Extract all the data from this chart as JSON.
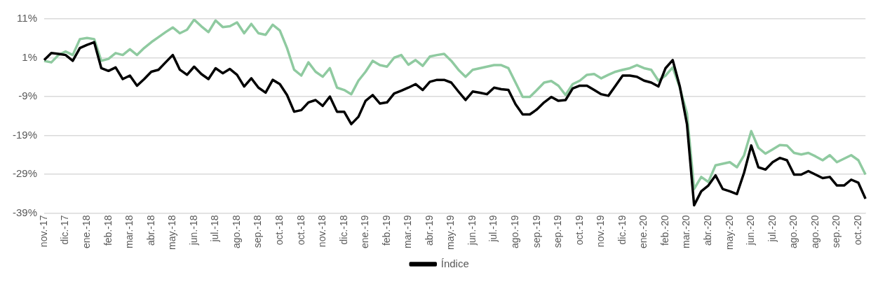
{
  "chart_data": {
    "type": "line",
    "categories": [
      "nov.-17",
      null,
      null,
      "dic.-17",
      null,
      null,
      "ene.-18",
      null,
      null,
      "feb.-18",
      null,
      null,
      "mar.-18",
      null,
      null,
      "abr.-18",
      null,
      null,
      "may.-18",
      null,
      null,
      "jun.-18",
      null,
      null,
      "jul.-18",
      null,
      null,
      "ago.-18",
      null,
      null,
      "sep.-18",
      null,
      null,
      "oct.-18",
      null,
      null,
      "oct.-18",
      null,
      null,
      "nov.-18",
      null,
      null,
      "dic.-18",
      null,
      null,
      "ene.-19",
      null,
      null,
      "feb.-19",
      null,
      null,
      "mar.-19",
      null,
      null,
      "abr.-19",
      null,
      null,
      "may.-19",
      null,
      null,
      "jun.-19",
      null,
      null,
      "jul.-19",
      null,
      null,
      "ago.-19",
      null,
      null,
      "sep.-19",
      null,
      null,
      "sep.-19",
      null,
      null,
      "oct.-19",
      null,
      null,
      "nov.-19",
      null,
      null,
      "dic.-19",
      null,
      null,
      "ene.-20",
      null,
      null,
      "feb.-20",
      null,
      null,
      "mar.-20",
      null,
      null,
      "abr.-20",
      null,
      null,
      "may.-20",
      null,
      null,
      "jun.-20",
      null,
      null,
      "jul.-20",
      null,
      null,
      "ago.-20",
      null,
      null,
      "ago.-20",
      null,
      null,
      "sep.-20",
      null,
      null,
      "oct.-20",
      null
    ],
    "series": [
      {
        "name": "Índice",
        "color": "#000000",
        "values": [
          0.4,
          2.2,
          2.0,
          1.7,
          0.2,
          3.5,
          4.3,
          5.0,
          -1.7,
          -2.4,
          -1.5,
          -4.5,
          -3.6,
          -6.2,
          -4.5,
          -2.6,
          -2.1,
          -0.2,
          1.7,
          -2.1,
          -3.4,
          -1.3,
          -3.2,
          -4.5,
          -1.7,
          -3.0,
          -1.9,
          -3.4,
          -6.4,
          -4.3,
          -6.7,
          -8.0,
          -4.7,
          -5.8,
          -8.6,
          -12.9,
          -12.5,
          -10.5,
          -9.9,
          -11.4,
          -9.0,
          -12.9,
          -12.9,
          -16.1,
          -14.2,
          -10.1,
          -8.6,
          -10.8,
          -10.5,
          -8.2,
          -7.5,
          -6.7,
          -5.8,
          -7.3,
          -5.2,
          -4.7,
          -4.7,
          -5.4,
          -7.7,
          -9.9,
          -7.7,
          -8.0,
          -8.4,
          -6.7,
          -7.1,
          -7.3,
          -11.0,
          -13.6,
          -13.6,
          -12.3,
          -10.5,
          -9.1,
          -10.1,
          -9.9,
          -6.9,
          -6.2,
          -6.2,
          -7.3,
          -8.4,
          -8.8,
          -6.2,
          -3.6,
          -3.6,
          -3.9,
          -4.9,
          -5.4,
          -6.4,
          -1.7,
          0.4,
          -6.4,
          -16.1,
          -37.0,
          -33.4,
          -31.9,
          -29.3,
          -32.8,
          -33.4,
          -34.1,
          -28.6,
          -21.6,
          -27.2,
          -27.8,
          -25.9,
          -24.8,
          -25.4,
          -29.1,
          -29.1,
          -28.2,
          -29.1,
          -30.0,
          -29.7,
          -31.9,
          -31.9,
          -30.4,
          -31.2,
          -35.3
        ]
      },
      {
        "color": "#8fcaa0",
        "values": [
          0.2,
          -0.2,
          1.7,
          2.6,
          1.7,
          5.8,
          6.1,
          5.8,
          0.2,
          0.7,
          2.2,
          1.7,
          3.2,
          1.7,
          3.5,
          5.0,
          6.3,
          7.6,
          8.8,
          7.3,
          8.2,
          10.8,
          9.1,
          7.6,
          10.6,
          8.9,
          9.1,
          10.1,
          7.3,
          9.7,
          7.3,
          6.9,
          9.5,
          8.0,
          3.5,
          -2.1,
          -3.6,
          -0.2,
          -2.6,
          -3.9,
          -1.7,
          -6.7,
          -7.3,
          -8.4,
          -4.9,
          -2.6,
          0.2,
          -0.9,
          -1.3,
          1.0,
          1.7,
          -0.8,
          0.4,
          -1.1,
          1.3,
          1.7,
          2.0,
          0.2,
          -2.1,
          -3.9,
          -2.1,
          -1.7,
          -1.3,
          -0.9,
          -0.9,
          -1.7,
          -5.4,
          -9.1,
          -9.1,
          -7.3,
          -5.4,
          -5.0,
          -6.2,
          -8.6,
          -5.8,
          -4.9,
          -3.4,
          -3.2,
          -4.3,
          -3.4,
          -2.6,
          -2.1,
          -1.7,
          -0.9,
          -1.7,
          -2.1,
          -4.9,
          -3.6,
          -1.5,
          -6.7,
          -13.3,
          -32.8,
          -29.7,
          -31.0,
          -26.7,
          -26.3,
          -25.9,
          -27.2,
          -24.1,
          -17.9,
          -22.2,
          -23.7,
          -22.6,
          -21.5,
          -21.6,
          -23.5,
          -23.9,
          -23.5,
          -24.4,
          -25.4,
          -24.1,
          -25.9,
          -25.0,
          -24.1,
          -25.4,
          -29.1
        ]
      }
    ],
    "ylim": [
      -39,
      11
    ],
    "yticks": [
      {
        "value": 11,
        "label": "11%"
      },
      {
        "value": 1,
        "label": "1%"
      },
      {
        "value": -9,
        "label": "-9%"
      },
      {
        "value": -19,
        "label": "-19%"
      },
      {
        "value": -29,
        "label": "-29%"
      },
      {
        "value": -39,
        "label": "-39%"
      }
    ],
    "grid": "y",
    "legend": "bottom",
    "marker": "none",
    "line_style": "solid"
  }
}
